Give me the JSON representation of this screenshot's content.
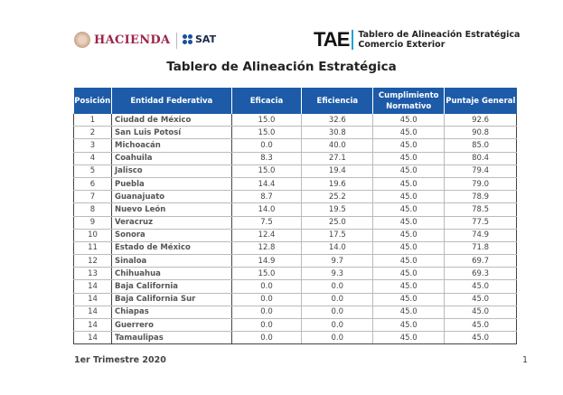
{
  "header": {
    "hacienda_label": "HACIENDA",
    "sat_label": "SAT",
    "tae_logo": "TAE",
    "tae_line1": "Tablero de Alineación Estratégica",
    "tae_line2": "Comercio Exterior"
  },
  "title": "Tablero de Alineación Estratégica",
  "table": {
    "columns": [
      "Posición",
      "Entidad Federativa",
      "Eficacia",
      "Eficiencia",
      "Cumplimiento Normativo",
      "Puntaje General"
    ],
    "rows": [
      [
        "1",
        "Ciudad de México",
        "15.0",
        "32.6",
        "45.0",
        "92.6"
      ],
      [
        "2",
        "San Luis Potosí",
        "15.0",
        "30.8",
        "45.0",
        "90.8"
      ],
      [
        "3",
        "Michoacán",
        "0.0",
        "40.0",
        "45.0",
        "85.0"
      ],
      [
        "4",
        "Coahuila",
        "8.3",
        "27.1",
        "45.0",
        "80.4"
      ],
      [
        "5",
        "Jalisco",
        "15.0",
        "19.4",
        "45.0",
        "79.4"
      ],
      [
        "6",
        "Puebla",
        "14.4",
        "19.6",
        "45.0",
        "79.0"
      ],
      [
        "7",
        "Guanajuato",
        "8.7",
        "25.2",
        "45.0",
        "78.9"
      ],
      [
        "8",
        "Nuevo León",
        "14.0",
        "19.5",
        "45.0",
        "78.5"
      ],
      [
        "9",
        "Veracruz",
        "7.5",
        "25.0",
        "45.0",
        "77.5"
      ],
      [
        "10",
        "Sonora",
        "12.4",
        "17.5",
        "45.0",
        "74.9"
      ],
      [
        "11",
        "Estado de México",
        "12.8",
        "14.0",
        "45.0",
        "71.8"
      ],
      [
        "12",
        "Sinaloa",
        "14.9",
        "9.7",
        "45.0",
        "69.7"
      ],
      [
        "13",
        "Chihuahua",
        "15.0",
        "9.3",
        "45.0",
        "69.3"
      ],
      [
        "14",
        "Baja California",
        "0.0",
        "0.0",
        "45.0",
        "45.0"
      ],
      [
        "14",
        "Baja California Sur",
        "0.0",
        "0.0",
        "45.0",
        "45.0"
      ],
      [
        "14",
        "Chiapas",
        "0.0",
        "0.0",
        "45.0",
        "45.0"
      ],
      [
        "14",
        "Guerrero",
        "0.0",
        "0.0",
        "45.0",
        "45.0"
      ],
      [
        "14",
        "Tamaulipas",
        "0.0",
        "0.0",
        "45.0",
        "45.0"
      ]
    ]
  },
  "footer": {
    "period": "1er Trimestre 2020",
    "page_number": "1"
  }
}
